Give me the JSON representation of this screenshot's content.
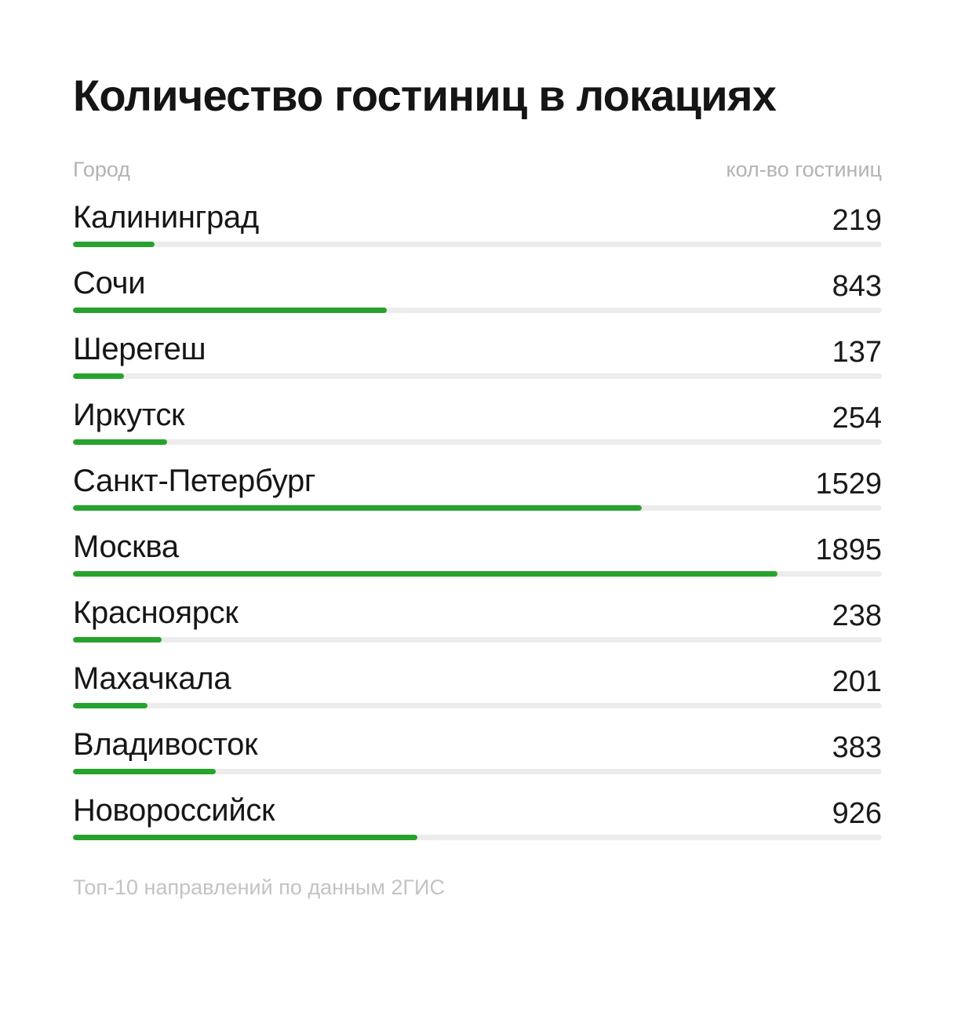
{
  "page": {
    "title": "Количество гостиниц в локациях",
    "columns": {
      "city_header": "Город",
      "count_header": "кол-во гостиниц"
    },
    "footer_note": "Топ-10 направлений по данным 2ГИС"
  },
  "colors": {
    "accent_green": "#27A32D",
    "track_gray": "#ECECEC",
    "text_dark": "#161616",
    "muted_gray": "#B3B3B3",
    "footer_gray": "#C3C3C3"
  },
  "chart_data": {
    "type": "bar",
    "orientation": "horizontal",
    "title": "Количество гостиниц в локациях",
    "xlabel": "кол-во гостиниц",
    "ylabel": "Город",
    "categories": [
      "Калининград",
      "Сочи",
      "Шерегеш",
      "Иркутск",
      "Санкт-Петербург",
      "Москва",
      "Красноярск",
      "Махачкала",
      "Владивосток",
      "Новороссийск"
    ],
    "values": [
      219,
      843,
      137,
      254,
      1529,
      1895,
      238,
      201,
      383,
      926
    ],
    "bar_scale_max": 2175,
    "grid": false,
    "legend": false,
    "bar_color": "#27A32D",
    "track_color": "#ECECEC",
    "source_note": "Топ-10 направлений по данным 2ГИС"
  }
}
